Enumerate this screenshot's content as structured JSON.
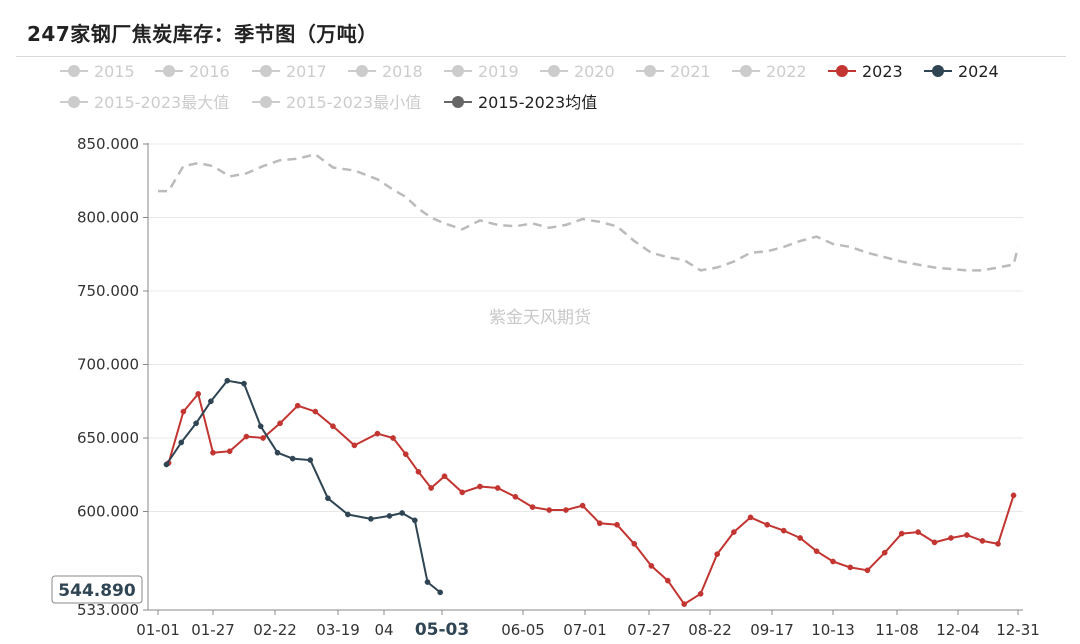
{
  "page": {
    "title": "247家钢厂焦炭库存：季节图（万吨）",
    "watermark": "紫金天风期货",
    "tooltip_value": "544.890",
    "highlight_label": "05-03"
  },
  "chart_data": {
    "type": "line",
    "title": "247家钢厂焦炭库存：季节图（万吨）",
    "xlabel": "",
    "ylabel": "",
    "ylim": [
      533,
      850
    ],
    "grid": true,
    "legend_position": "top",
    "x_ticks": [
      "01-01",
      "01-27",
      "02-22",
      "03-19",
      "04",
      "05-03",
      "06-05",
      "07-01",
      "07-27",
      "08-22",
      "09-17",
      "10-13",
      "11-08",
      "12-04",
      "12-31"
    ],
    "y_ticks": [
      "850.000",
      "800.000",
      "750.000",
      "700.000",
      "650.000",
      "600.000",
      "533.000"
    ],
    "legend": [
      {
        "name": "2015",
        "active": false,
        "color": "#cccccc"
      },
      {
        "name": "2016",
        "active": false,
        "color": "#cccccc"
      },
      {
        "name": "2017",
        "active": false,
        "color": "#cccccc"
      },
      {
        "name": "2018",
        "active": false,
        "color": "#cccccc"
      },
      {
        "name": "2019",
        "active": false,
        "color": "#cccccc"
      },
      {
        "name": "2020",
        "active": false,
        "color": "#cccccc"
      },
      {
        "name": "2021",
        "active": false,
        "color": "#cccccc"
      },
      {
        "name": "2022",
        "active": false,
        "color": "#cccccc"
      },
      {
        "name": "2023",
        "active": true,
        "color": "#c23531"
      },
      {
        "name": "2024",
        "active": true,
        "color": "#2f4554"
      },
      {
        "name": "2015-2023最大值",
        "active": false,
        "color": "#cccccc"
      },
      {
        "name": "2015-2023最小值",
        "active": false,
        "color": "#cccccc"
      },
      {
        "name": "2015-2023均值",
        "active": true,
        "color": "#666666"
      }
    ],
    "series": [
      {
        "name": "2023",
        "color": "#c23531",
        "x": [
          "01-06",
          "01-13",
          "01-20",
          "01-27",
          "02-03",
          "02-10",
          "02-17",
          "02-24",
          "03-03",
          "03-10",
          "03-17",
          "03-24",
          "03-31",
          "04-07",
          "04-14",
          "04-21",
          "04-28",
          "05-05",
          "05-12",
          "05-19",
          "05-26",
          "06-02",
          "06-09",
          "06-16",
          "06-23",
          "06-30",
          "07-07",
          "07-14",
          "07-21",
          "07-28",
          "08-04",
          "08-11",
          "08-18",
          "08-25",
          "09-01",
          "09-08",
          "09-15",
          "09-22",
          "09-29",
          "10-06",
          "10-13",
          "10-20",
          "10-27",
          "11-03",
          "11-10",
          "11-17",
          "11-24",
          "12-01",
          "12-08",
          "12-15",
          "12-22",
          "12-29"
        ],
        "values": [
          633,
          668,
          680,
          640,
          641,
          651,
          650,
          660,
          672,
          668,
          658,
          645,
          653,
          650,
          639,
          627,
          616,
          624,
          613,
          617,
          616,
          610,
          603,
          601,
          601,
          604,
          592,
          591,
          578,
          563,
          553,
          537,
          544,
          571,
          586,
          596,
          591,
          587,
          582,
          573,
          566,
          562,
          560,
          572,
          585,
          586,
          579,
          582,
          584,
          580,
          578,
          611
        ]
      },
      {
        "name": "2024",
        "color": "#2f4554",
        "x": [
          "01-05",
          "01-12",
          "01-19",
          "01-26",
          "02-02",
          "02-09",
          "02-16",
          "02-23",
          "03-01",
          "03-08",
          "03-15",
          "03-22",
          "03-29",
          "04-05",
          "04-12",
          "04-19",
          "04-26",
          "05-03"
        ],
        "values": [
          632,
          647,
          660,
          675,
          689,
          687,
          658,
          640,
          636,
          635,
          609,
          598,
          595,
          597,
          599,
          594,
          552,
          545
        ]
      },
      {
        "name": "2015-2023均值",
        "color": "#bbbbbb",
        "x": [
          "01-01",
          "01-06",
          "01-13",
          "01-20",
          "01-27",
          "02-03",
          "02-10",
          "02-17",
          "02-24",
          "03-03",
          "03-10",
          "03-17",
          "03-24",
          "03-31",
          "04-07",
          "04-14",
          "04-21",
          "04-28",
          "05-05",
          "05-12",
          "05-19",
          "05-26",
          "06-02",
          "06-09",
          "06-16",
          "06-23",
          "06-30",
          "07-07",
          "07-14",
          "07-21",
          "07-28",
          "08-04",
          "08-11",
          "08-18",
          "08-25",
          "09-01",
          "09-08",
          "09-15",
          "09-22",
          "09-29",
          "10-06",
          "10-13",
          "10-20",
          "10-27",
          "11-03",
          "11-10",
          "11-17",
          "11-24",
          "12-01",
          "12-08",
          "12-15",
          "12-22",
          "12-29",
          "12-31"
        ],
        "values": [
          818,
          818,
          835,
          837,
          835,
          828,
          830,
          835,
          839,
          840,
          843,
          834,
          832,
          826,
          819,
          814,
          806,
          800,
          796,
          792,
          798,
          795,
          794,
          796,
          793,
          795,
          799,
          797,
          794,
          784,
          776,
          773,
          771,
          764,
          766,
          770,
          776,
          777,
          780,
          784,
          787,
          782,
          780,
          776,
          773,
          770,
          768,
          766,
          765,
          764,
          764,
          766,
          768,
          780
        ]
      }
    ]
  }
}
